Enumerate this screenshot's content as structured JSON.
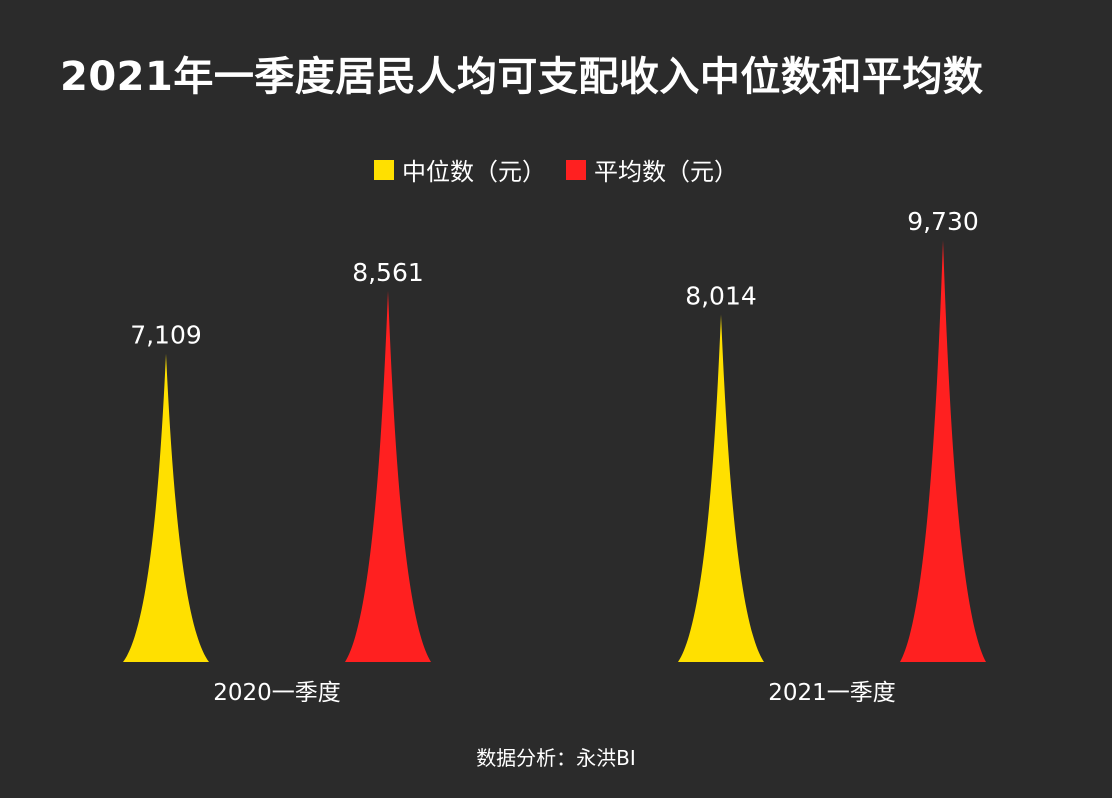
{
  "title": "2021年一季度居民人均可支配收入中位数和平均数",
  "legend": [
    {
      "label": "中位数（元）",
      "color": "#ffe000"
    },
    {
      "label": "平均数（元）",
      "color": "#ff2020"
    }
  ],
  "footer": "数据分析：永洪BI",
  "chart_data": {
    "type": "bar",
    "style": "pointed-peak",
    "categories": [
      "2020一季度",
      "2021一季度"
    ],
    "series": [
      {
        "name": "中位数（元）",
        "values": [
          7109,
          8014
        ],
        "labels": [
          "7,109",
          "8,014"
        ],
        "color": "#ffe000"
      },
      {
        "name": "平均数（元）",
        "values": [
          8561,
          9730
        ],
        "labels": [
          "8,561",
          "9,730"
        ],
        "color": "#ff2020"
      }
    ],
    "ylim": [
      0,
      11000
    ],
    "xlabel": "",
    "ylabel": "",
    "grid": false,
    "legend_position": "top"
  }
}
